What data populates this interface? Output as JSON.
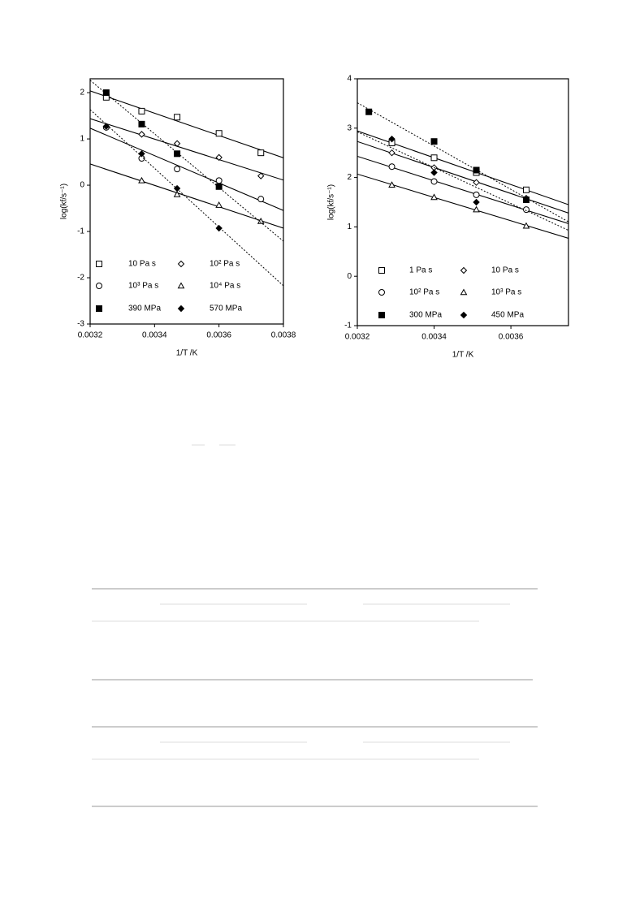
{
  "chart_data": [
    {
      "type": "scatter",
      "x_label": "1/T /K",
      "y_label": "log(kf/s⁻¹)",
      "xlim": [
        0.0032,
        0.0038
      ],
      "ylim": [
        -3,
        2.3
      ],
      "xticks": [
        0.0032,
        0.0034,
        0.0036,
        0.0038
      ],
      "yticks": [
        -3,
        -2,
        -1,
        0,
        1,
        2
      ],
      "series": [
        {
          "name": "10 Pa s",
          "marker": "square-open",
          "line_style": "solid",
          "x": [
            0.00325,
            0.00336,
            0.00347,
            0.0036,
            0.00373
          ],
          "values": [
            1.9,
            1.6,
            1.47,
            1.12,
            0.7
          ]
        },
        {
          "name": "10² Pa s",
          "marker": "diamond-open",
          "line_style": "solid",
          "x": [
            0.00325,
            0.00336,
            0.00347,
            0.0036,
            0.00373
          ],
          "values": [
            1.27,
            1.1,
            0.9,
            0.6,
            0.2
          ]
        },
        {
          "name": "10³ Pa s",
          "marker": "circle-open",
          "line_style": "solid",
          "x": [
            0.00325,
            0.00336,
            0.00347,
            0.0036,
            0.00373
          ],
          "values": [
            1.25,
            0.58,
            0.35,
            0.1,
            -0.3
          ]
        },
        {
          "name": "10⁴ Pa s",
          "marker": "triangle-open",
          "line_style": "solid",
          "x": [
            0.00336,
            0.00347,
            0.0036,
            0.00373
          ],
          "values": [
            0.1,
            -0.2,
            -0.43,
            -0.78
          ]
        },
        {
          "name": "390  MPa",
          "marker": "square-filled",
          "line_style": "dotted",
          "x": [
            0.00325,
            0.00336,
            0.00347,
            0.0036
          ],
          "values": [
            2.0,
            1.32,
            0.68,
            -0.03
          ]
        },
        {
          "name": "570  MPa",
          "marker": "diamond-filled",
          "line_style": "dotted",
          "x": [
            0.00325,
            0.00336,
            0.00347,
            0.0036
          ],
          "values": [
            1.27,
            0.68,
            -0.07,
            -0.93
          ]
        }
      ]
    },
    {
      "type": "scatter",
      "x_label": "1/T /K",
      "y_label": "log(kf/s⁻¹)",
      "xlim": [
        0.0032,
        0.00375
      ],
      "ylim": [
        -1,
        4
      ],
      "xticks": [
        0.0032,
        0.0034,
        0.0036
      ],
      "yticks": [
        -1,
        0,
        1,
        2,
        3,
        4
      ],
      "series": [
        {
          "name": "1 Pa s",
          "marker": "square-open",
          "line_style": "solid",
          "x": [
            0.00329,
            0.0034,
            0.00351,
            0.00364
          ],
          "values": [
            2.7,
            2.4,
            2.1,
            1.75
          ]
        },
        {
          "name": "10 Pa s",
          "marker": "diamond-open",
          "line_style": "solid",
          "x": [
            0.00329,
            0.0034,
            0.00351,
            0.00364
          ],
          "values": [
            2.5,
            2.2,
            1.9,
            1.58
          ]
        },
        {
          "name": "10² Pa s",
          "marker": "circle-open",
          "line_style": "solid",
          "x": [
            0.00329,
            0.0034,
            0.00351,
            0.00364
          ],
          "values": [
            2.22,
            1.92,
            1.65,
            1.35
          ]
        },
        {
          "name": "10³ Pa s",
          "marker": "triangle-open",
          "line_style": "solid",
          "x": [
            0.00329,
            0.0034,
            0.00351,
            0.00364
          ],
          "values": [
            1.85,
            1.6,
            1.35,
            1.02
          ]
        },
        {
          "name": "300  MPa",
          "marker": "square-filled",
          "line_style": "dotted",
          "x": [
            0.00323,
            0.0034,
            0.00351,
            0.00364
          ],
          "values": [
            3.33,
            2.73,
            2.15,
            1.55
          ]
        },
        {
          "name": "450  MPa",
          "marker": "diamond-filled",
          "line_style": "dotted",
          "x": [
            0.00329,
            0.0034,
            0.00351,
            0.00364
          ],
          "values": [
            2.78,
            2.1,
            1.5,
            1.55
          ]
        }
      ]
    }
  ]
}
